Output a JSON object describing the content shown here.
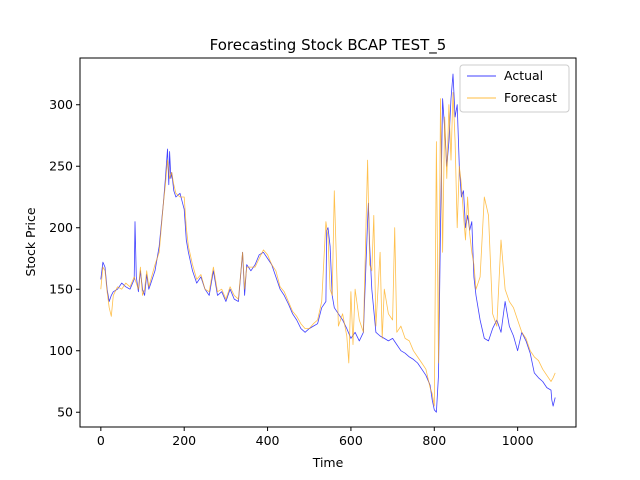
{
  "chart_data": {
    "type": "line",
    "title": "Forecasting Stock BCAP TEST_5",
    "xlabel": "Time",
    "ylabel": "Stock Price",
    "xlim": [
      -50,
      1140
    ],
    "ylim": [
      38,
      338
    ],
    "xticks": [
      0,
      200,
      400,
      600,
      800,
      1000
    ],
    "yticks": [
      50,
      100,
      150,
      200,
      250,
      300
    ],
    "grid": false,
    "legend_position": "upper-right",
    "series": [
      {
        "name": "Actual",
        "color": "#0000ff",
        "x": [
          0,
          5,
          10,
          15,
          20,
          25,
          30,
          40,
          50,
          60,
          70,
          80,
          82,
          85,
          90,
          95,
          100,
          105,
          110,
          115,
          120,
          130,
          140,
          150,
          155,
          160,
          163,
          165,
          168,
          170,
          175,
          180,
          190,
          200,
          205,
          210,
          220,
          230,
          240,
          250,
          260,
          270,
          280,
          290,
          300,
          310,
          320,
          330,
          340,
          345,
          350,
          360,
          370,
          380,
          390,
          400,
          410,
          420,
          430,
          440,
          450,
          460,
          470,
          480,
          490,
          500,
          510,
          520,
          530,
          540,
          542,
          545,
          550,
          555,
          560,
          570,
          580,
          590,
          600,
          610,
          620,
          630,
          640,
          642,
          645,
          650,
          660,
          670,
          680,
          690,
          700,
          710,
          720,
          730,
          740,
          750,
          760,
          770,
          780,
          790,
          795,
          800,
          805,
          810,
          815,
          820,
          825,
          830,
          835,
          840,
          845,
          850,
          855,
          860,
          865,
          870,
          875,
          880,
          885,
          890,
          895,
          900,
          910,
          920,
          930,
          940,
          950,
          960,
          970,
          980,
          990,
          1000,
          1010,
          1020,
          1030,
          1040,
          1050,
          1060,
          1070,
          1080,
          1082,
          1085,
          1090
        ],
        "y": [
          158,
          172,
          168,
          150,
          140,
          145,
          148,
          150,
          155,
          152,
          150,
          158,
          205,
          160,
          148,
          165,
          150,
          145,
          162,
          150,
          155,
          165,
          185,
          220,
          240,
          264,
          235,
          262,
          240,
          245,
          230,
          225,
          228,
          215,
          190,
          180,
          165,
          155,
          160,
          150,
          145,
          165,
          145,
          148,
          140,
          150,
          142,
          140,
          180,
          145,
          170,
          165,
          170,
          178,
          180,
          175,
          170,
          160,
          150,
          145,
          138,
          130,
          125,
          118,
          115,
          118,
          120,
          122,
          135,
          140,
          198,
          200,
          185,
          145,
          135,
          130,
          125,
          118,
          110,
          115,
          108,
          115,
          205,
          220,
          185,
          150,
          115,
          112,
          110,
          108,
          110,
          105,
          100,
          98,
          95,
          93,
          90,
          85,
          80,
          72,
          60,
          52,
          50,
          80,
          200,
          305,
          280,
          250,
          270,
          305,
          325,
          290,
          300,
          250,
          225,
          230,
          200,
          210,
          198,
          205,
          160,
          145,
          125,
          110,
          108,
          118,
          125,
          115,
          140,
          120,
          112,
          100,
          115,
          108,
          98,
          82,
          78,
          75,
          70,
          68,
          60,
          55,
          62
        ]
      },
      {
        "name": "Forecast",
        "color": "#ffa500",
        "x": [
          0,
          5,
          10,
          15,
          20,
          25,
          30,
          40,
          50,
          60,
          70,
          80,
          85,
          90,
          95,
          100,
          105,
          110,
          115,
          120,
          130,
          140,
          150,
          155,
          160,
          165,
          170,
          175,
          180,
          190,
          200,
          205,
          210,
          220,
          230,
          240,
          250,
          260,
          270,
          280,
          290,
          300,
          310,
          320,
          330,
          340,
          345,
          350,
          360,
          370,
          380,
          390,
          400,
          410,
          420,
          430,
          440,
          450,
          460,
          470,
          480,
          490,
          500,
          510,
          520,
          530,
          540,
          545,
          550,
          555,
          560,
          570,
          580,
          590,
          595,
          600,
          605,
          610,
          620,
          630,
          640,
          645,
          650,
          655,
          660,
          670,
          675,
          680,
          690,
          700,
          705,
          710,
          720,
          730,
          740,
          750,
          760,
          770,
          780,
          790,
          795,
          800,
          805,
          810,
          815,
          820,
          825,
          830,
          835,
          840,
          845,
          850,
          855,
          860,
          865,
          870,
          875,
          880,
          885,
          890,
          895,
          900,
          910,
          920,
          930,
          940,
          950,
          960,
          970,
          980,
          990,
          1000,
          1010,
          1020,
          1030,
          1040,
          1050,
          1060,
          1070,
          1080,
          1085,
          1090
        ],
        "y": [
          150,
          168,
          165,
          148,
          135,
          128,
          145,
          152,
          150,
          155,
          152,
          160,
          155,
          150,
          168,
          145,
          150,
          165,
          152,
          158,
          170,
          180,
          220,
          235,
          255,
          240,
          245,
          235,
          228,
          225,
          225,
          200,
          185,
          170,
          158,
          162,
          150,
          148,
          168,
          148,
          150,
          142,
          152,
          145,
          142,
          180,
          150,
          168,
          168,
          168,
          175,
          182,
          178,
          170,
          165,
          152,
          148,
          140,
          132,
          128,
          122,
          118,
          118,
          122,
          125,
          140,
          205,
          192,
          150,
          145,
          230,
          120,
          130,
          112,
          90,
          148,
          105,
          150,
          125,
          115,
          255,
          170,
          165,
          210,
          120,
          180,
          110,
          150,
          130,
          125,
          200,
          115,
          120,
          110,
          108,
          100,
          95,
          90,
          85,
          70,
          65,
          55,
          270,
          90,
          305,
          180,
          290,
          240,
          300,
          255,
          310,
          270,
          200,
          250,
          235,
          210,
          190,
          225,
          195,
          180,
          170,
          150,
          160,
          225,
          210,
          130,
          120,
          190,
          150,
          140,
          135,
          125,
          115,
          110,
          100,
          95,
          92,
          85,
          80,
          75,
          78,
          82
        ]
      }
    ]
  }
}
